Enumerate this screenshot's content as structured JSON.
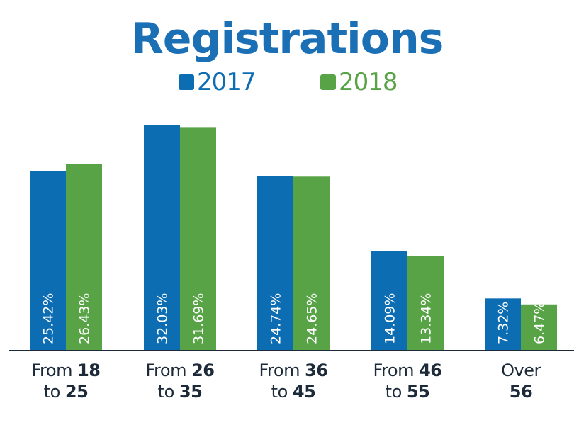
{
  "chart_data": {
    "type": "bar",
    "title": "Registrations",
    "categories": [
      "From 18 to 25",
      "From 26 to 35",
      "From 36 to 45",
      "From 46 to 55",
      "Over 56"
    ],
    "category_labels": [
      {
        "line1_prefix": "From ",
        "line1_bold": "18",
        "line2_prefix": "to ",
        "line2_bold": "25"
      },
      {
        "line1_prefix": "From ",
        "line1_bold": "26",
        "line2_prefix": "to ",
        "line2_bold": "35"
      },
      {
        "line1_prefix": "From ",
        "line1_bold": "36",
        "line2_prefix": "to ",
        "line2_bold": "45"
      },
      {
        "line1_prefix": "From ",
        "line1_bold": "46",
        "line2_prefix": "to ",
        "line2_bold": "55"
      },
      {
        "line1_prefix": "Over",
        "line1_bold": "",
        "line2_prefix": "",
        "line2_bold": "56"
      }
    ],
    "series": [
      {
        "name": "2017",
        "color": "#0d6db3",
        "values": [
          25.42,
          32.03,
          24.74,
          14.09,
          7.32
        ],
        "labels": [
          "25.42%",
          "32.03%",
          "24.74%",
          "14.09%",
          "7.32%"
        ]
      },
      {
        "name": "2018",
        "color": "#57a346",
        "values": [
          26.43,
          31.69,
          24.65,
          13.34,
          6.47
        ],
        "labels": [
          "26.43%",
          "31.69%",
          "24.65%",
          "13.34%",
          "6.47%"
        ]
      }
    ],
    "xlabel": "",
    "ylabel": "",
    "ylim": [
      0,
      32.03
    ],
    "grid": false,
    "legend_position": "top-center",
    "axis_color": "#1c2a3a",
    "title_color": "#1a6fb5"
  }
}
